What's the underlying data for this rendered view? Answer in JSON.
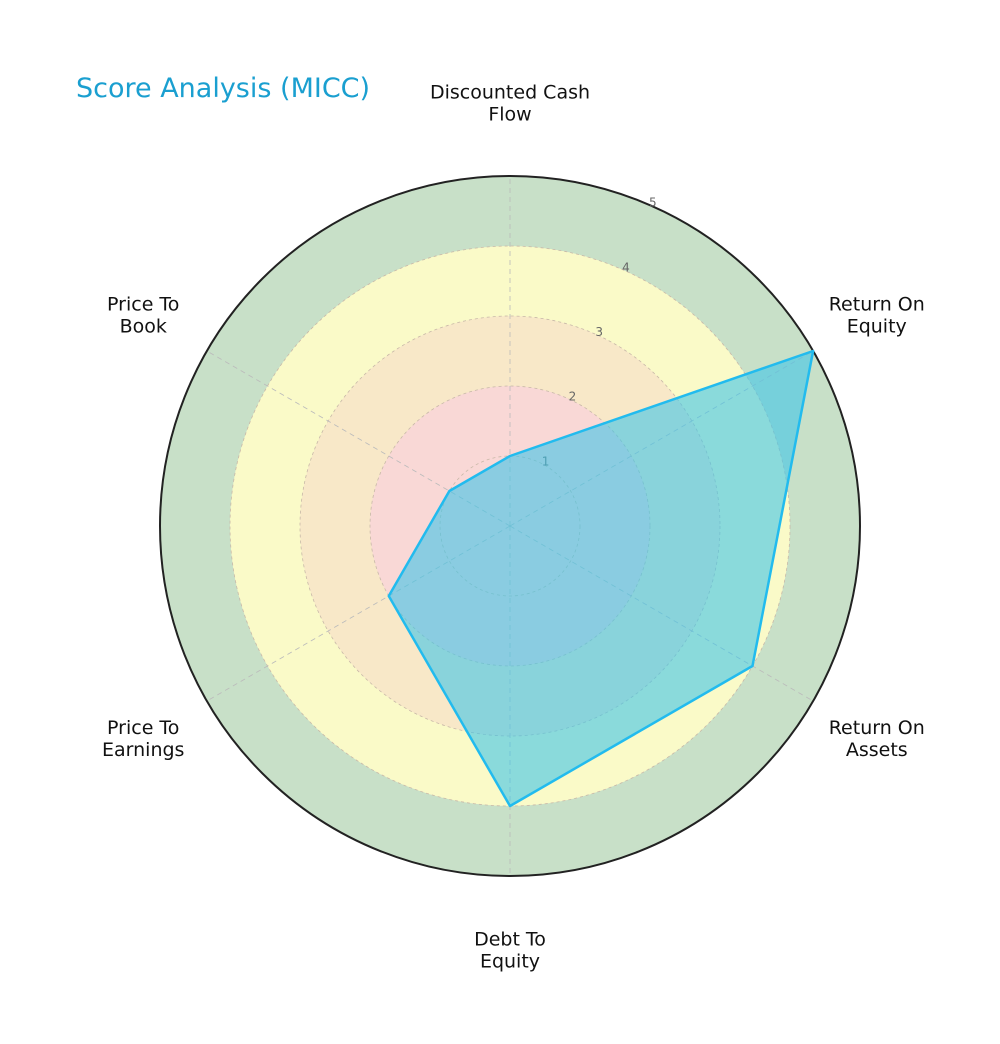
{
  "chart_data": {
    "type": "radar",
    "title": "Score Analysis (MICC)",
    "categories": [
      [
        "Discounted Cash",
        "Flow"
      ],
      [
        "Return On",
        "Equity"
      ],
      [
        "Return On",
        "Assets"
      ],
      [
        "Debt To",
        "Equity"
      ],
      [
        "Price To",
        "Earnings"
      ],
      [
        "Price To",
        "Book"
      ]
    ],
    "series": [
      {
        "name": "MICC",
        "values": [
          1,
          5,
          4,
          4,
          2,
          1
        ]
      }
    ],
    "rlim": [
      0,
      5
    ],
    "rticks": [
      "1",
      "2",
      "3",
      "4",
      "5"
    ],
    "bands": [
      {
        "from": 0,
        "to": 2,
        "color": "#f9d8d6"
      },
      {
        "from": 2,
        "to": 3,
        "color": "#f8e8c8"
      },
      {
        "from": 3,
        "to": 4,
        "color": "#fafac8"
      },
      {
        "from": 4,
        "to": 5,
        "color": "#c8e0c8"
      }
    ],
    "colors": {
      "line": "#22bbee",
      "fill": "#3fc4e8",
      "title": "#1a9fd0"
    }
  }
}
